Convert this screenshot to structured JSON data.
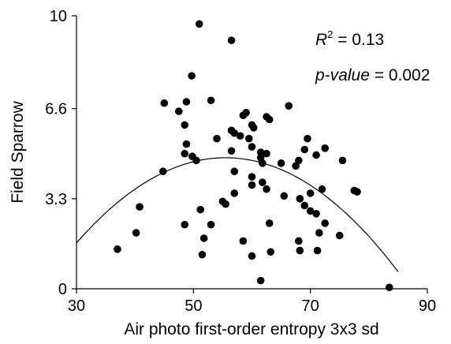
{
  "chart_data": {
    "type": "scatter",
    "title": "",
    "xlabel": "Air photo first-order entropy 3x3 sd",
    "ylabel": "Field Sparrow",
    "xlim": [
      30,
      90
    ],
    "ylim": [
      0,
      10
    ],
    "x_ticks": [
      "30",
      "50",
      "70",
      "90"
    ],
    "y_ticks": [
      "0",
      "3.3",
      "6.6",
      "10"
    ],
    "x_tick_values": [
      30,
      50,
      70,
      90
    ],
    "y_tick_values": [
      0,
      3.3,
      6.6,
      10
    ],
    "grid": false,
    "legend": "none",
    "annotations": {
      "r2_symbol": "R",
      "r2_sup": "2",
      "r2_rest": " = 0.13",
      "p_label": "p-value",
      "p_rest": " = 0.002"
    },
    "fit_curve": {
      "type": "quadratic",
      "x_range": [
        30,
        85
      ],
      "coefficients": {
        "peak_x": 55.5,
        "peak_y": 4.8,
        "a": -0.0048
      }
    },
    "points": [
      {
        "x": 51,
        "y": 9.7
      },
      {
        "x": 56.5,
        "y": 9.1
      },
      {
        "x": 49.7,
        "y": 7.8
      },
      {
        "x": 45,
        "y": 6.8
      },
      {
        "x": 48.8,
        "y": 6.85
      },
      {
        "x": 53,
        "y": 6.9
      },
      {
        "x": 47.5,
        "y": 6.5
      },
      {
        "x": 48.5,
        "y": 6.0
      },
      {
        "x": 58.5,
        "y": 6.35
      },
      {
        "x": 59,
        "y": 6.45
      },
      {
        "x": 60,
        "y": 6.0
      },
      {
        "x": 60.3,
        "y": 5.9
      },
      {
        "x": 62.5,
        "y": 6.3
      },
      {
        "x": 63,
        "y": 6.2
      },
      {
        "x": 66.3,
        "y": 6.7
      },
      {
        "x": 56.5,
        "y": 5.8
      },
      {
        "x": 57,
        "y": 5.7
      },
      {
        "x": 58,
        "y": 5.6
      },
      {
        "x": 59.5,
        "y": 5.5
      },
      {
        "x": 54,
        "y": 5.5
      },
      {
        "x": 48.8,
        "y": 5.3
      },
      {
        "x": 56.5,
        "y": 5.05
      },
      {
        "x": 60,
        "y": 5.2
      },
      {
        "x": 61.5,
        "y": 5.0
      },
      {
        "x": 62.5,
        "y": 4.95
      },
      {
        "x": 61.5,
        "y": 4.8
      },
      {
        "x": 48.5,
        "y": 4.95
      },
      {
        "x": 49.8,
        "y": 4.85
      },
      {
        "x": 50.5,
        "y": 4.7
      },
      {
        "x": 61.8,
        "y": 4.6
      },
      {
        "x": 69.5,
        "y": 5.5
      },
      {
        "x": 69,
        "y": 5.1
      },
      {
        "x": 72.5,
        "y": 5.15
      },
      {
        "x": 71,
        "y": 4.9
      },
      {
        "x": 67.5,
        "y": 4.5
      },
      {
        "x": 68,
        "y": 4.7
      },
      {
        "x": 65,
        "y": 4.6
      },
      {
        "x": 75.5,
        "y": 4.7
      },
      {
        "x": 44.8,
        "y": 4.3
      },
      {
        "x": 57,
        "y": 4.3
      },
      {
        "x": 60,
        "y": 4.1
      },
      {
        "x": 61.8,
        "y": 3.9
      },
      {
        "x": 60,
        "y": 3.8
      },
      {
        "x": 62.5,
        "y": 3.65
      },
      {
        "x": 57,
        "y": 3.5
      },
      {
        "x": 65.5,
        "y": 3.4
      },
      {
        "x": 68.2,
        "y": 3.3
      },
      {
        "x": 70,
        "y": 3.5
      },
      {
        "x": 72,
        "y": 3.65
      },
      {
        "x": 77.5,
        "y": 3.6
      },
      {
        "x": 78,
        "y": 3.55
      },
      {
        "x": 69,
        "y": 3.05
      },
      {
        "x": 70,
        "y": 2.85
      },
      {
        "x": 71,
        "y": 2.75
      },
      {
        "x": 55,
        "y": 3.2
      },
      {
        "x": 55.5,
        "y": 3.1
      },
      {
        "x": 63,
        "y": 2.4
      },
      {
        "x": 40.8,
        "y": 3.0
      },
      {
        "x": 51.2,
        "y": 2.9
      },
      {
        "x": 72.5,
        "y": 2.4
      },
      {
        "x": 48.5,
        "y": 2.35
      },
      {
        "x": 53,
        "y": 2.35
      },
      {
        "x": 71.5,
        "y": 2.05
      },
      {
        "x": 40.2,
        "y": 2.05
      },
      {
        "x": 51.8,
        "y": 1.85
      },
      {
        "x": 75,
        "y": 1.95
      },
      {
        "x": 58.5,
        "y": 1.75
      },
      {
        "x": 68,
        "y": 1.75
      },
      {
        "x": 37,
        "y": 1.45
      },
      {
        "x": 51.5,
        "y": 1.25
      },
      {
        "x": 60,
        "y": 1.2
      },
      {
        "x": 68.2,
        "y": 1.4
      },
      {
        "x": 71.2,
        "y": 1.4
      },
      {
        "x": 63.2,
        "y": 1.35
      },
      {
        "x": 61.5,
        "y": 0.3
      },
      {
        "x": 83.5,
        "y": 0.05
      }
    ]
  }
}
